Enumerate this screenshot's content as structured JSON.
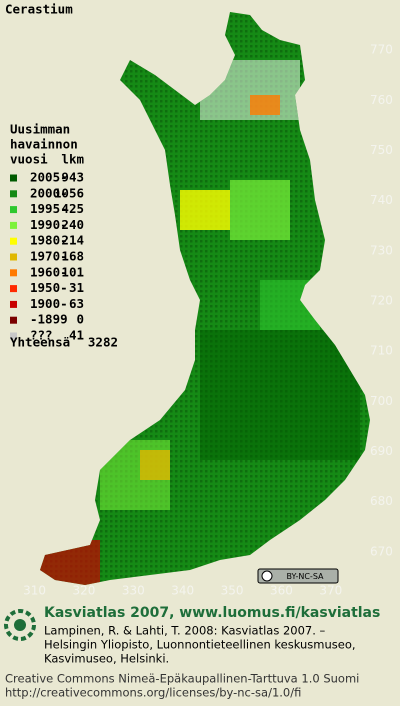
{
  "title": "Cerastium",
  "legend": {
    "heading": [
      "Uusimman",
      "havainnon",
      "vuosi"
    ],
    "count_heading": "lkm",
    "items": [
      {
        "label": "2005-",
        "count": 943,
        "color": "#005a00"
      },
      {
        "label": "2000-",
        "count": 1056,
        "color": "#158a15"
      },
      {
        "label": "1995-",
        "count": 425,
        "color": "#2ec82e"
      },
      {
        "label": "1990-",
        "count": 240,
        "color": "#7cf23a"
      },
      {
        "label": "1980-",
        "count": 214,
        "color": "#ffff00"
      },
      {
        "label": "1970-",
        "count": 168,
        "color": "#e0b800"
      },
      {
        "label": "1960-",
        "count": 101,
        "color": "#ff7a00"
      },
      {
        "label": "1950-",
        "count": 31,
        "color": "#ff2a00"
      },
      {
        "label": "1900-",
        "count": 63,
        "color": "#c80000"
      },
      {
        "label": "-1899",
        "count": 0,
        "color": "#7a0000"
      },
      {
        "label": "???",
        "count": 41,
        "color": "#c8c8c8"
      }
    ],
    "total_label": "Yhteensä",
    "total": 3282
  },
  "map": {
    "xlim": [
      303,
      384
    ],
    "ylim": [
      660,
      780
    ],
    "xticks": [
      310,
      320,
      330,
      340,
      350,
      360,
      370
    ],
    "yticks": [
      670,
      680,
      690,
      700,
      710,
      720,
      730,
      740,
      750,
      760,
      770
    ]
  },
  "footer": {
    "badge": "BY-NC-SA",
    "site": "Kasviatlas 2007, www.luomus.fi/kasviatlas",
    "citation": [
      "Lampinen, R. & Lahti, T. 2008: Kasviatlas 2007. –",
      "Helsingin Yliopisto, Luonnontieteellinen keskusmuseo,",
      "Kasvimuseo, Helsinki."
    ],
    "license": [
      "Creative Commons Nimeä-Epäkaupallinen-Tarttuva 1.0 Suomi",
      "http://creativecommons.org/licenses/by-nc-sa/1.0/fi"
    ]
  }
}
